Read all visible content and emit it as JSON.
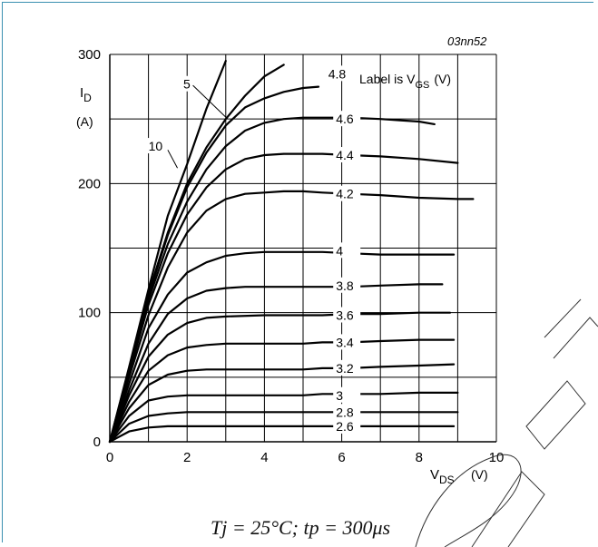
{
  "chart_data": {
    "type": "line",
    "figure_code": "03nn52",
    "ylabel_main": "I",
    "ylabel_sub": "D",
    "ylabel_unit": "(A)",
    "xlabel_main": "V",
    "xlabel_sub": "DS",
    "xlabel_unit": "(V)",
    "legend_prefix": "Label is V",
    "legend_sub": "GS",
    "legend_unit": "(V)",
    "condition": "Tj = 25°C; tp = 300μs",
    "xlim": [
      0,
      10
    ],
    "ylim": [
      0,
      300
    ],
    "x_ticks": [
      "0",
      "2",
      "4",
      "6",
      "8",
      "10"
    ],
    "y_ticks": [
      "0",
      "100",
      "200",
      "300"
    ],
    "grid": true,
    "series": [
      {
        "name": "10",
        "label_x": 1.0,
        "label_y": 229,
        "points": [
          [
            0,
            0
          ],
          [
            0.5,
            58
          ],
          [
            1,
            118
          ],
          [
            1.5,
            175
          ],
          [
            2,
            215
          ],
          [
            2.5,
            258
          ],
          [
            3,
            295
          ]
        ]
      },
      {
        "name": "5",
        "label_x": 1.9,
        "label_y": 277,
        "points": [
          [
            0,
            0
          ],
          [
            0.5,
            57
          ],
          [
            1,
            115
          ],
          [
            1.5,
            162
          ],
          [
            2,
            200
          ],
          [
            2.5,
            228
          ],
          [
            3,
            250
          ],
          [
            3.5,
            268
          ],
          [
            4,
            283
          ],
          [
            4.5,
            292
          ]
        ]
      },
      {
        "name": "4.8",
        "label_x": 5.65,
        "label_y": 285,
        "points": [
          [
            0,
            0
          ],
          [
            0.5,
            55
          ],
          [
            1,
            113
          ],
          [
            1.5,
            160
          ],
          [
            2,
            197
          ],
          [
            2.5,
            224
          ],
          [
            3,
            245
          ],
          [
            3.5,
            259
          ],
          [
            4,
            266
          ],
          [
            4.5,
            271
          ],
          [
            5,
            274
          ],
          [
            5.4,
            275
          ]
        ]
      },
      {
        "name": "4.6",
        "label_x": 5.85,
        "label_y": 250,
        "points": [
          [
            0,
            0
          ],
          [
            0.5,
            55
          ],
          [
            1,
            110
          ],
          [
            1.5,
            153
          ],
          [
            2,
            186
          ],
          [
            2.5,
            211
          ],
          [
            3,
            229
          ],
          [
            3.5,
            241
          ],
          [
            4,
            247
          ],
          [
            4.5,
            250
          ],
          [
            5,
            251
          ],
          [
            5.5,
            251
          ],
          [
            6.2,
            251
          ],
          [
            7,
            250
          ],
          [
            7.5,
            249
          ],
          [
            8,
            248
          ],
          [
            8.4,
            246
          ]
        ]
      },
      {
        "name": "4.4",
        "label_x": 5.85,
        "label_y": 222,
        "points": [
          [
            0,
            0
          ],
          [
            0.5,
            53
          ],
          [
            1,
            106
          ],
          [
            1.5,
            146
          ],
          [
            2,
            176
          ],
          [
            2.5,
            197
          ],
          [
            3,
            211
          ],
          [
            3.5,
            219
          ],
          [
            4,
            222
          ],
          [
            4.5,
            223
          ],
          [
            5,
            223
          ],
          [
            5.5,
            223
          ],
          [
            6.2,
            222
          ],
          [
            7,
            221
          ],
          [
            8,
            219
          ],
          [
            9,
            216
          ]
        ]
      },
      {
        "name": "4.2",
        "label_x": 5.85,
        "label_y": 192,
        "points": [
          [
            0,
            0
          ],
          [
            0.5,
            50
          ],
          [
            1,
            98
          ],
          [
            1.5,
            135
          ],
          [
            2,
            162
          ],
          [
            2.5,
            179
          ],
          [
            3,
            188
          ],
          [
            3.5,
            192
          ],
          [
            4,
            193
          ],
          [
            4.5,
            194
          ],
          [
            5,
            194
          ],
          [
            5.5,
            193
          ],
          [
            6.2,
            192
          ],
          [
            7,
            191
          ],
          [
            8,
            189
          ],
          [
            9,
            188
          ],
          [
            9.4,
            188
          ]
        ]
      },
      {
        "name": "4",
        "label_x": 5.85,
        "label_y": 148,
        "points": [
          [
            0,
            0
          ],
          [
            0.5,
            45
          ],
          [
            1,
            88
          ],
          [
            1.5,
            114
          ],
          [
            2,
            131
          ],
          [
            2.5,
            139
          ],
          [
            3,
            144
          ],
          [
            3.5,
            146
          ],
          [
            4,
            147
          ],
          [
            5,
            147
          ],
          [
            5.5,
            147
          ],
          [
            6.2,
            146
          ],
          [
            7,
            145
          ],
          [
            8,
            145
          ],
          [
            8.9,
            145
          ]
        ]
      },
      {
        "name": "3.8",
        "label_x": 5.85,
        "label_y": 121,
        "points": [
          [
            0,
            0
          ],
          [
            0.5,
            40
          ],
          [
            1,
            76
          ],
          [
            1.5,
            99
          ],
          [
            2,
            111
          ],
          [
            2.5,
            117
          ],
          [
            3,
            119
          ],
          [
            3.5,
            120
          ],
          [
            4,
            120
          ],
          [
            5,
            120
          ],
          [
            5.5,
            120
          ],
          [
            6.2,
            120
          ],
          [
            7,
            121
          ],
          [
            8,
            122
          ],
          [
            8.6,
            122
          ]
        ]
      },
      {
        "name": "3.6",
        "label_x": 5.85,
        "label_y": 98,
        "points": [
          [
            0,
            0
          ],
          [
            0.5,
            36
          ],
          [
            1,
            66
          ],
          [
            1.5,
            83
          ],
          [
            2,
            92
          ],
          [
            2.5,
            96
          ],
          [
            3,
            97
          ],
          [
            4,
            98
          ],
          [
            5,
            98
          ],
          [
            5.5,
            98
          ],
          [
            6.2,
            99
          ],
          [
            7,
            99
          ],
          [
            8,
            100
          ],
          [
            8.8,
            100
          ]
        ]
      },
      {
        "name": "3.4",
        "label_x": 5.85,
        "label_y": 77,
        "points": [
          [
            0,
            0
          ],
          [
            0.5,
            31
          ],
          [
            1,
            55
          ],
          [
            1.5,
            67
          ],
          [
            2,
            73
          ],
          [
            2.5,
            75
          ],
          [
            3,
            76
          ],
          [
            4,
            76
          ],
          [
            5,
            76
          ],
          [
            5.5,
            77
          ],
          [
            6.2,
            77
          ],
          [
            7,
            78
          ],
          [
            8,
            79
          ],
          [
            8.9,
            79
          ]
        ]
      },
      {
        "name": "3.2",
        "label_x": 5.85,
        "label_y": 57,
        "points": [
          [
            0,
            0
          ],
          [
            0.5,
            26
          ],
          [
            1,
            44
          ],
          [
            1.5,
            52
          ],
          [
            2,
            55
          ],
          [
            2.5,
            56
          ],
          [
            3,
            56
          ],
          [
            4,
            56
          ],
          [
            5,
            56
          ],
          [
            5.5,
            57
          ],
          [
            6.2,
            57
          ],
          [
            7,
            58
          ],
          [
            8,
            59
          ],
          [
            8.9,
            60
          ]
        ]
      },
      {
        "name": "3",
        "label_x": 5.85,
        "label_y": 36,
        "points": [
          [
            0,
            0
          ],
          [
            0.5,
            20
          ],
          [
            1,
            32
          ],
          [
            1.5,
            35
          ],
          [
            2,
            36
          ],
          [
            3,
            36
          ],
          [
            4,
            36
          ],
          [
            5,
            36
          ],
          [
            5.5,
            37
          ],
          [
            6.2,
            37
          ],
          [
            7,
            37
          ],
          [
            8,
            38
          ],
          [
            9,
            38
          ]
        ]
      },
      {
        "name": "2.8",
        "label_x": 5.85,
        "label_y": 23,
        "points": [
          [
            0,
            0
          ],
          [
            0.5,
            14
          ],
          [
            1,
            20
          ],
          [
            1.5,
            22
          ],
          [
            2,
            23
          ],
          [
            3,
            23
          ],
          [
            4,
            23
          ],
          [
            5,
            23
          ],
          [
            5.5,
            23
          ],
          [
            6.2,
            23
          ],
          [
            7,
            23
          ],
          [
            8,
            23
          ],
          [
            9,
            23
          ]
        ]
      },
      {
        "name": "2.6",
        "label_x": 5.85,
        "label_y": 12,
        "points": [
          [
            0,
            0
          ],
          [
            0.5,
            8
          ],
          [
            1,
            11
          ],
          [
            1.5,
            12
          ],
          [
            2,
            12
          ],
          [
            3,
            12
          ],
          [
            4,
            12
          ],
          [
            5,
            12
          ],
          [
            5.5,
            12
          ],
          [
            6.2,
            12
          ],
          [
            7,
            12
          ],
          [
            8,
            12
          ],
          [
            8.9,
            12
          ]
        ]
      }
    ]
  }
}
